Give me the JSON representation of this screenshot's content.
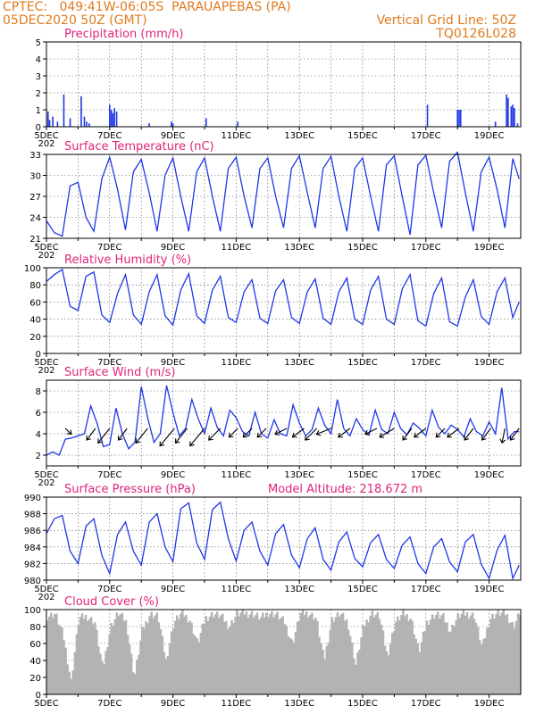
{
  "header": {
    "line1_left": "CPTEC:   049:41W-06:05S  PARAUAPEBAS (PA)",
    "line2_left": "05DEC2020 50Z (GMT)",
    "line1_right": "Vertical Grid Line: 50Z",
    "line2_right": "TQ0126L028"
  },
  "colors": {
    "header": "#e07a1f",
    "title": "#e0247a",
    "series": "#1f37e6",
    "cloud": "#b3b3b3"
  },
  "x_axis": {
    "labels": [
      "5DEC",
      "7DEC",
      "9DEC",
      "11DEC",
      "13DEC",
      "15DEC",
      "17DEC",
      "19DEC"
    ],
    "label_days": [
      0,
      2,
      4,
      6,
      8,
      10,
      12,
      14
    ],
    "cutoff_label": "202",
    "range_days": [
      0,
      15
    ]
  },
  "chart_data": [
    {
      "id": "precipitation",
      "type": "bar",
      "title": "Precipitation (mm/h)",
      "ylim": [
        0,
        5
      ],
      "yticks": [
        0,
        1,
        2,
        3,
        4,
        5
      ],
      "grid": true,
      "x_days": [
        0.05,
        0.1,
        0.2,
        0.35,
        0.55,
        0.75,
        1.1,
        1.2,
        1.27,
        1.35,
        2.0,
        2.05,
        2.1,
        2.15,
        2.22,
        3.25,
        3.95,
        4.0,
        5.05,
        6.05,
        12.05,
        13.0,
        13.05,
        13.1,
        14.2,
        14.55,
        14.6,
        14.7,
        14.75,
        14.8,
        14.9
      ],
      "values": [
        0.9,
        0.4,
        0.6,
        0.3,
        1.9,
        0.5,
        1.8,
        0.6,
        0.3,
        0.2,
        1.3,
        1.0,
        0.8,
        1.1,
        0.9,
        0.2,
        0.3,
        0.2,
        0.5,
        0.3,
        1.3,
        1.0,
        1.0,
        1.0,
        0.3,
        1.9,
        1.7,
        1.2,
        1.3,
        1.1,
        0.2
      ]
    },
    {
      "id": "temperature",
      "type": "line",
      "title": "Surface Temperature (nC)",
      "ylim": [
        21,
        33
      ],
      "yticks": [
        21,
        24,
        27,
        30,
        33
      ],
      "grid": true,
      "x_days": [
        0.0,
        0.25,
        0.5,
        0.75,
        1.0,
        1.25,
        1.5,
        1.75,
        2.0,
        2.25,
        2.5,
        2.75,
        3.0,
        3.25,
        3.5,
        3.75,
        4.0,
        4.25,
        4.5,
        4.75,
        5.0,
        5.25,
        5.5,
        5.75,
        6.0,
        6.25,
        6.5,
        6.75,
        7.0,
        7.25,
        7.5,
        7.75,
        8.0,
        8.25,
        8.5,
        8.75,
        9.0,
        9.25,
        9.5,
        9.75,
        10.0,
        10.25,
        10.5,
        10.75,
        11.0,
        11.25,
        11.5,
        11.75,
        12.0,
        12.25,
        12.5,
        12.75,
        13.0,
        13.25,
        13.5,
        13.75,
        14.0,
        14.25,
        14.5,
        14.75,
        14.95
      ],
      "values": [
        23.5,
        21.8,
        21.3,
        28.5,
        29.0,
        24.0,
        22.0,
        29.5,
        32.6,
        28.0,
        22.2,
        30.5,
        32.3,
        27.5,
        22.0,
        30.0,
        32.5,
        27.0,
        22.0,
        30.5,
        32.5,
        27.0,
        22.0,
        31.0,
        32.6,
        27.0,
        22.5,
        31.0,
        32.5,
        27.0,
        22.5,
        31.0,
        32.8,
        27.5,
        22.5,
        31.0,
        32.7,
        27.0,
        22.0,
        31.0,
        32.5,
        27.0,
        22.0,
        31.5,
        32.8,
        27.0,
        21.5,
        31.5,
        32.9,
        27.5,
        22.5,
        32.0,
        33.3,
        27.5,
        22.0,
        30.5,
        32.6,
        28.0,
        22.5,
        32.4,
        29.5
      ]
    },
    {
      "id": "humidity",
      "type": "line",
      "title": "Relative Humidity (%)",
      "ylim": [
        0,
        100
      ],
      "yticks": [
        0,
        20,
        40,
        60,
        80,
        100
      ],
      "grid": true,
      "x_days": [
        0.0,
        0.25,
        0.5,
        0.75,
        1.0,
        1.25,
        1.5,
        1.75,
        2.0,
        2.25,
        2.5,
        2.75,
        3.0,
        3.25,
        3.5,
        3.75,
        4.0,
        4.25,
        4.5,
        4.75,
        5.0,
        5.25,
        5.5,
        5.75,
        6.0,
        6.25,
        6.5,
        6.75,
        7.0,
        7.25,
        7.5,
        7.75,
        8.0,
        8.25,
        8.5,
        8.75,
        9.0,
        9.25,
        9.5,
        9.75,
        10.0,
        10.25,
        10.5,
        10.75,
        11.0,
        11.25,
        11.5,
        11.75,
        12.0,
        12.25,
        12.5,
        12.75,
        13.0,
        13.25,
        13.5,
        13.75,
        14.0,
        14.25,
        14.5,
        14.75,
        14.95
      ],
      "values": [
        84,
        92,
        98,
        55,
        50,
        90,
        95,
        45,
        36,
        70,
        92,
        45,
        34,
        72,
        92,
        44,
        33,
        74,
        93,
        44,
        35,
        74,
        90,
        42,
        36,
        72,
        86,
        41,
        35,
        73,
        86,
        42,
        35,
        72,
        87,
        41,
        34,
        72,
        88,
        40,
        34,
        74,
        90,
        40,
        34,
        75,
        92,
        38,
        32,
        70,
        88,
        37,
        32,
        66,
        86,
        43,
        34,
        72,
        88,
        42,
        60
      ]
    },
    {
      "id": "wind",
      "type": "line",
      "title": "Surface Wind (m/s)",
      "ylim": [
        1,
        9
      ],
      "yticks": [
        2,
        4,
        6,
        8
      ],
      "grid": true,
      "x_days": [
        0.0,
        0.2,
        0.4,
        0.6,
        0.8,
        1.0,
        1.2,
        1.4,
        1.6,
        1.8,
        2.0,
        2.2,
        2.4,
        2.6,
        2.8,
        3.0,
        3.2,
        3.4,
        3.6,
        3.8,
        4.0,
        4.2,
        4.4,
        4.6,
        4.8,
        5.0,
        5.2,
        5.4,
        5.6,
        5.8,
        6.0,
        6.2,
        6.4,
        6.6,
        6.8,
        7.0,
        7.2,
        7.4,
        7.6,
        7.8,
        8.0,
        8.2,
        8.4,
        8.6,
        8.8,
        9.0,
        9.2,
        9.4,
        9.6,
        9.8,
        10.0,
        10.2,
        10.4,
        10.6,
        10.8,
        11.0,
        11.2,
        11.4,
        11.6,
        11.8,
        12.0,
        12.2,
        12.4,
        12.6,
        12.8,
        13.0,
        13.2,
        13.4,
        13.6,
        13.8,
        14.0,
        14.2,
        14.4,
        14.6,
        14.8,
        14.95
      ],
      "values": [
        2.0,
        2.3,
        2.0,
        3.5,
        3.6,
        3.8,
        4.0,
        6.6,
        5.0,
        2.8,
        3.0,
        6.4,
        4.0,
        2.6,
        3.2,
        8.4,
        5.5,
        3.2,
        4.0,
        8.5,
        6.0,
        3.8,
        4.5,
        7.2,
        5.4,
        4.0,
        6.4,
        4.6,
        3.8,
        6.2,
        5.5,
        4.2,
        3.8,
        6.0,
        4.0,
        3.6,
        5.3,
        4.0,
        3.8,
        6.7,
        5.0,
        3.8,
        4.4,
        6.4,
        4.8,
        4.0,
        7.2,
        4.5,
        3.8,
        5.4,
        4.4,
        3.9,
        6.2,
        4.4,
        4.0,
        6.0,
        4.5,
        3.9,
        5.0,
        4.5,
        3.8,
        6.2,
        4.6,
        4.0,
        4.8,
        4.4,
        3.7,
        5.4,
        4.2,
        3.8,
        5.1,
        4.0,
        8.3,
        3.5,
        4.2,
        4.2
      ],
      "arrows": {
        "x_days": [
          0.6,
          1.55,
          2.0,
          2.55,
          3.2,
          4.05,
          4.45,
          5.0,
          5.5,
          6.05,
          6.5,
          6.95,
          7.6,
          8.15,
          8.55,
          9.0,
          9.6,
          10.45,
          11.0,
          11.55,
          12.0,
          12.6,
          13.05,
          13.5,
          14.05,
          14.5,
          14.95
        ],
        "u": [
          1.0,
          -1.5,
          -2.0,
          -1.5,
          -2.0,
          -2.5,
          -2.0,
          -2.5,
          -2.0,
          -1.5,
          -1.5,
          -1.5,
          -2.0,
          -2.0,
          -2.0,
          -2.5,
          -2.0,
          -2.0,
          -2.5,
          -1.5,
          -2.0,
          -1.5,
          -2.0,
          -1.5,
          -1.5,
          -0.5,
          -1.5
        ],
        "v": [
          -1.0,
          -2.0,
          -2.5,
          -2.0,
          -2.5,
          -3.0,
          -2.5,
          -3.0,
          -2.0,
          -1.5,
          -1.5,
          -1.5,
          -1.0,
          -1.5,
          -2.0,
          -1.0,
          -1.5,
          -1.0,
          -1.5,
          -2.0,
          -1.5,
          -1.5,
          -1.5,
          -2.0,
          -2.0,
          -2.5,
          -2.0
        ]
      }
    },
    {
      "id": "pressure",
      "type": "line",
      "title": "Surface Pressure (hPa)",
      "annotation": "Model Altitude: 218.672 m",
      "ylim": [
        980,
        990
      ],
      "yticks": [
        980,
        982,
        984,
        986,
        988,
        990
      ],
      "grid": true,
      "x_days": [
        0.0,
        0.25,
        0.5,
        0.75,
        1.0,
        1.25,
        1.5,
        1.75,
        2.0,
        2.25,
        2.5,
        2.75,
        3.0,
        3.25,
        3.5,
        3.75,
        4.0,
        4.25,
        4.5,
        4.75,
        5.0,
        5.25,
        5.5,
        5.75,
        6.0,
        6.25,
        6.5,
        6.75,
        7.0,
        7.25,
        7.5,
        7.75,
        8.0,
        8.25,
        8.5,
        8.75,
        9.0,
        9.25,
        9.5,
        9.75,
        10.0,
        10.25,
        10.5,
        10.75,
        11.0,
        11.25,
        11.5,
        11.75,
        12.0,
        12.25,
        12.5,
        12.75,
        13.0,
        13.25,
        13.5,
        13.75,
        14.0,
        14.25,
        14.5,
        14.75,
        14.95
      ],
      "values": [
        985.6,
        987.4,
        987.8,
        983.5,
        982.0,
        986.5,
        987.4,
        983.0,
        980.8,
        985.5,
        987.0,
        983.5,
        981.8,
        987.0,
        988.0,
        984.0,
        982.2,
        988.6,
        989.3,
        984.5,
        982.5,
        988.5,
        989.4,
        985.0,
        982.3,
        986.0,
        987.0,
        983.5,
        981.8,
        985.6,
        986.7,
        983.0,
        981.5,
        985.0,
        986.3,
        982.5,
        981.2,
        984.6,
        985.8,
        982.6,
        981.6,
        984.5,
        985.5,
        982.5,
        981.4,
        984.2,
        985.2,
        982.0,
        980.8,
        984.0,
        985.0,
        982.2,
        981.0,
        984.6,
        985.5,
        981.9,
        980.2,
        983.6,
        985.4,
        980.2,
        981.8
      ]
    },
    {
      "id": "cloud",
      "type": "area",
      "title": "Cloud Cover (%)",
      "ylim": [
        0,
        100
      ],
      "yticks": [
        0,
        20,
        40,
        60,
        80,
        100
      ],
      "grid": true,
      "x_days": [
        0.0,
        0.25,
        0.5,
        0.75,
        1.0,
        1.25,
        1.5,
        1.75,
        2.0,
        2.25,
        2.5,
        2.75,
        3.0,
        3.25,
        3.5,
        3.75,
        4.0,
        4.25,
        4.5,
        4.75,
        5.0,
        5.25,
        5.5,
        5.75,
        6.0,
        6.25,
        6.5,
        6.75,
        7.0,
        7.25,
        7.5,
        7.75,
        8.0,
        8.25,
        8.5,
        8.75,
        9.0,
        9.25,
        9.5,
        9.75,
        10.0,
        10.25,
        10.5,
        10.75,
        11.0,
        11.25,
        11.5,
        11.75,
        12.0,
        12.25,
        12.5,
        12.75,
        13.0,
        13.25,
        13.5,
        13.75,
        14.0,
        14.25,
        14.5,
        14.75,
        14.95
      ],
      "values": [
        92,
        95,
        70,
        15,
        90,
        92,
        85,
        30,
        80,
        96,
        85,
        20,
        75,
        95,
        92,
        40,
        85,
        96,
        88,
        60,
        90,
        95,
        92,
        80,
        95,
        96,
        95,
        90,
        96,
        94,
        85,
        60,
        95,
        96,
        90,
        40,
        88,
        95,
        85,
        35,
        80,
        96,
        92,
        45,
        85,
        95,
        90,
        50,
        85,
        94,
        92,
        75,
        93,
        95,
        93,
        55,
        90,
        96,
        95,
        80,
        97
      ]
    }
  ]
}
